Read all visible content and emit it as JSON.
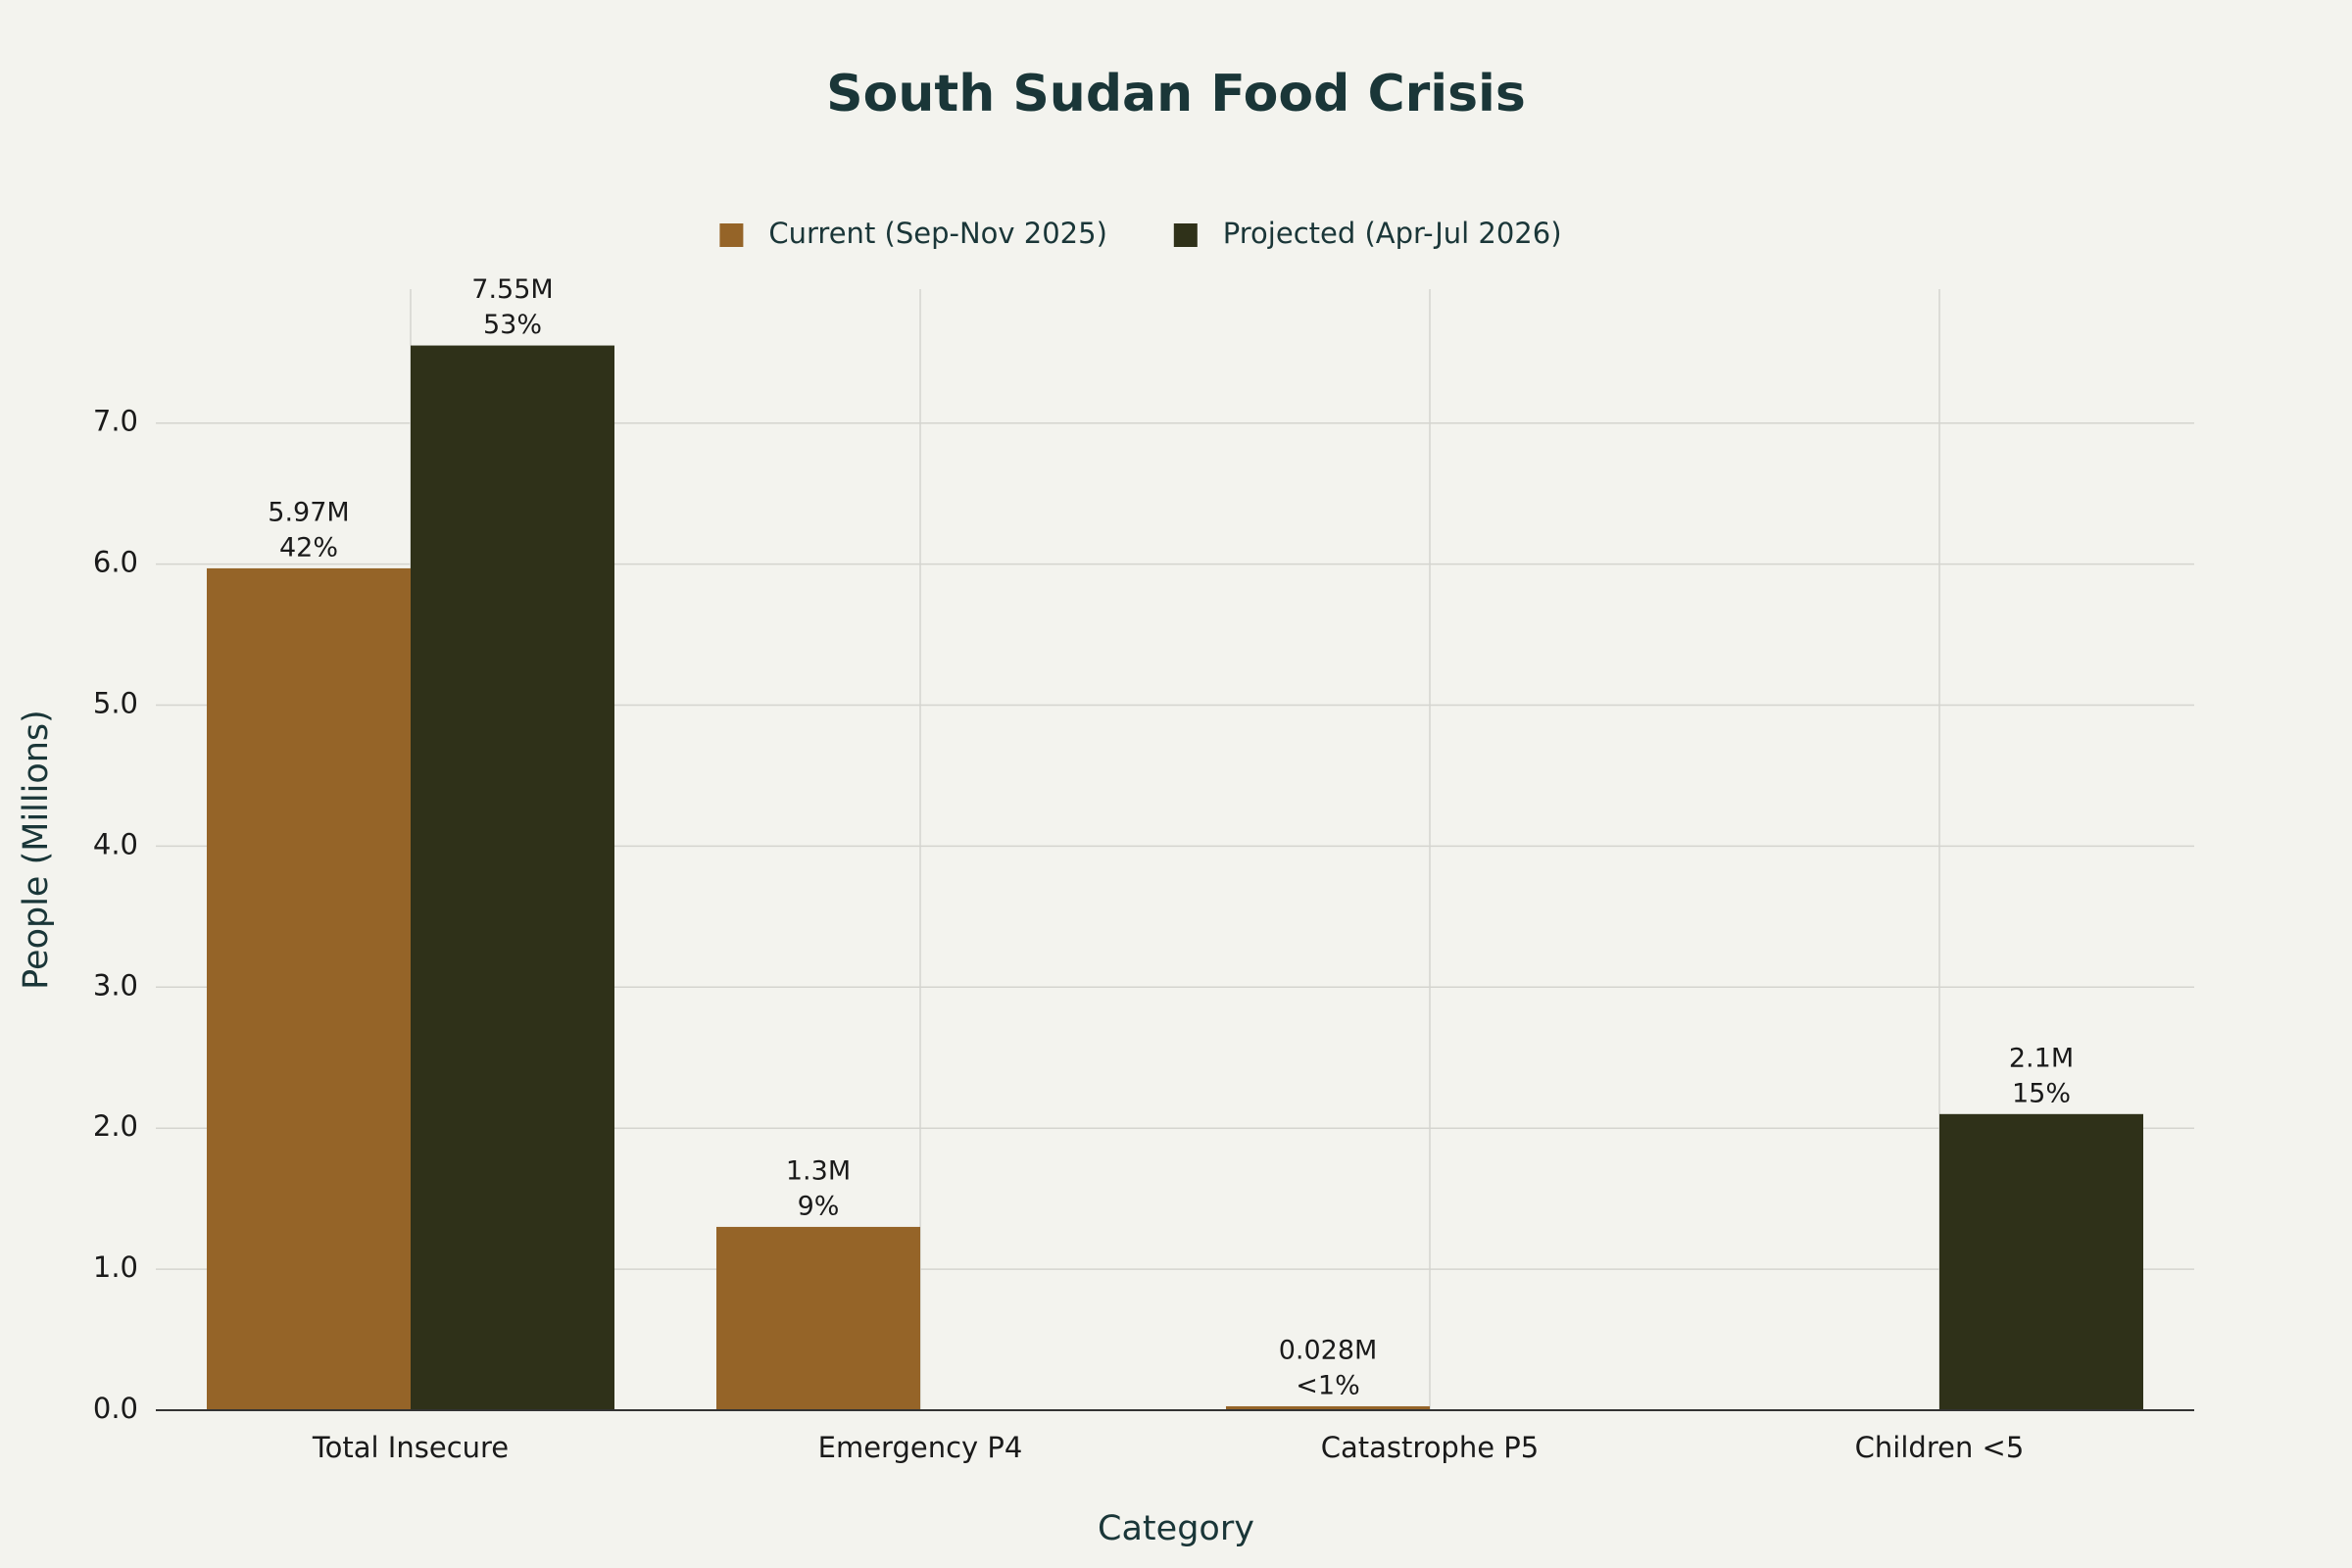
{
  "chart_data": {
    "type": "bar",
    "title": "South Sudan Food Crisis",
    "x_label": "Category",
    "y_label": "People (Millions)",
    "categories": [
      "Total Insecure",
      "Emergency P4",
      "Catastrophe P5",
      "Children <5"
    ],
    "series": [
      {
        "name": "Current (Sep-Nov 2025)",
        "color": "#956428",
        "values": [
          5.97,
          1.3,
          0.028,
          null
        ],
        "value_labels": [
          [
            "5.97M",
            "42%"
          ],
          [
            "1.3M",
            "9%"
          ],
          [
            "0.028M",
            "<1%"
          ],
          null
        ]
      },
      {
        "name": "Projected (Apr-Jul 2026)",
        "color": "#2f3119",
        "values": [
          7.55,
          null,
          null,
          2.1
        ],
        "value_labels": [
          [
            "7.55M",
            "53%"
          ],
          null,
          null,
          [
            "2.1M",
            "15%"
          ]
        ]
      }
    ],
    "ylim": [
      0,
      7.95
    ],
    "yticks": [
      {
        "value": 0,
        "label": "0.0"
      },
      {
        "value": 1,
        "label": "1.0"
      },
      {
        "value": 2,
        "label": "2.0"
      },
      {
        "value": 3,
        "label": "3.0"
      },
      {
        "value": 4,
        "label": "4.0"
      },
      {
        "value": 5,
        "label": "5.0"
      },
      {
        "value": 6,
        "label": "6.0"
      },
      {
        "value": 7,
        "label": "7.0"
      }
    ],
    "grid": true,
    "legend": "top"
  }
}
